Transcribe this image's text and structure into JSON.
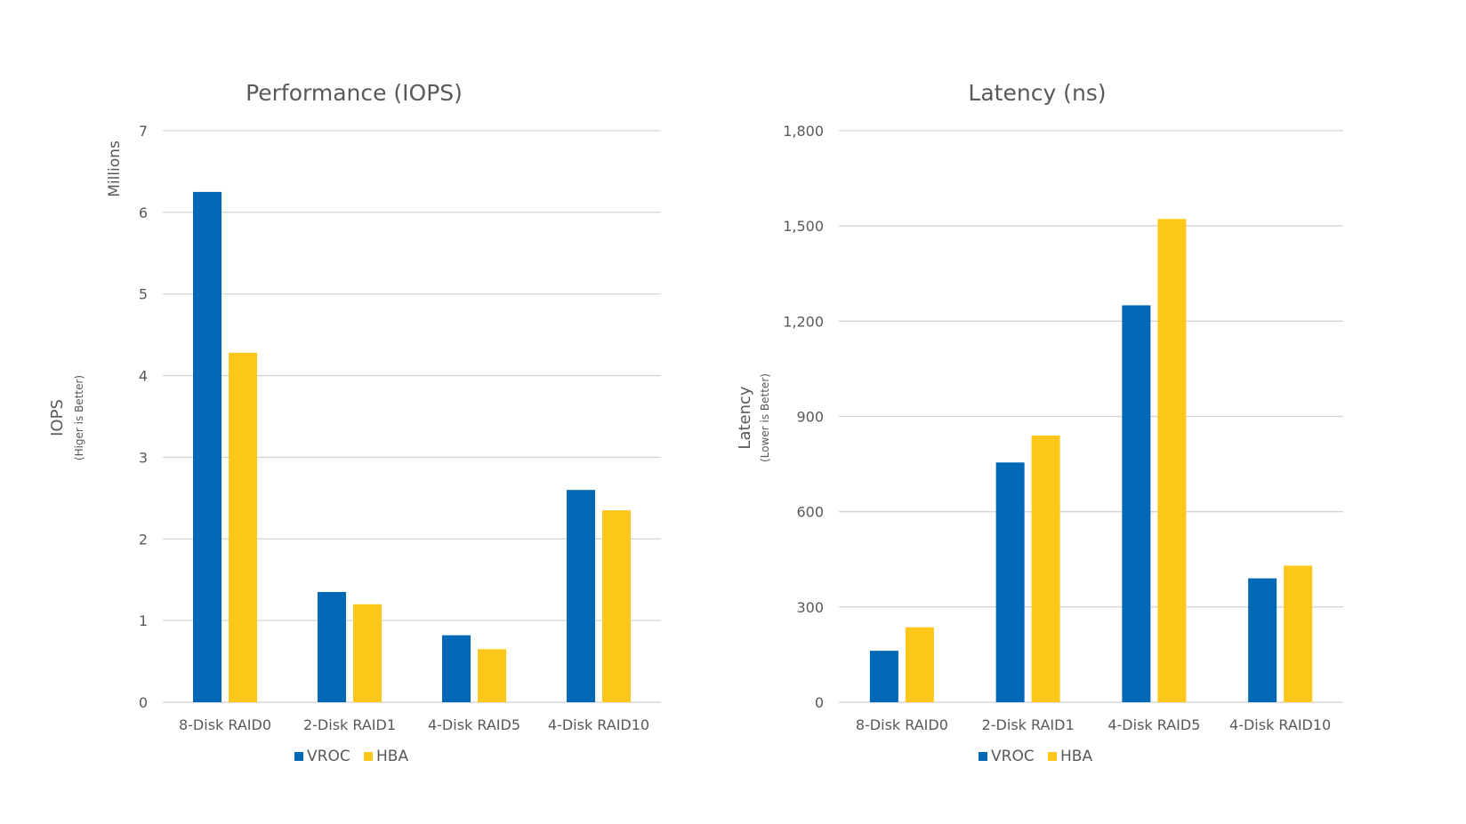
{
  "chart_data": [
    {
      "type": "bar",
      "title": "Performance (IOPS)",
      "ylabel": "IOPS",
      "ylabel_sub": "(Higer is Better)",
      "unit_label": "Millions",
      "categories": [
        "8-Disk RAID0",
        "2-Disk RAID1",
        "4-Disk RAID5",
        "4-Disk RAID10"
      ],
      "yticks": [
        "0",
        "1",
        "2",
        "3",
        "4",
        "5",
        "6",
        "7"
      ],
      "ylim": [
        0,
        7
      ],
      "grid": true,
      "legend_position": "bottom",
      "series": [
        {
          "name": "VROC",
          "color": "#0068b5",
          "values": [
            6.25,
            1.35,
            0.82,
            2.6
          ]
        },
        {
          "name": "HBA",
          "color": "#fcc718",
          "values": [
            4.28,
            1.2,
            0.65,
            2.35
          ]
        }
      ]
    },
    {
      "type": "bar",
      "title": "Latency (ns)",
      "ylabel": "Latency",
      "ylabel_sub": "(Lower is Better)",
      "categories": [
        "8-Disk RAID0",
        "2-Disk RAID1",
        "4-Disk RAID5",
        "4-Disk RAID10"
      ],
      "yticks": [
        "0",
        "300",
        "600",
        "900",
        "1,200",
        "1,500",
        "1,800"
      ],
      "ylim": [
        0,
        1800
      ],
      "grid": true,
      "legend_position": "bottom",
      "series": [
        {
          "name": "VROC",
          "color": "#0068b5",
          "values": [
            162,
            755,
            1250,
            390
          ]
        },
        {
          "name": "HBA",
          "color": "#fcc718",
          "values": [
            236,
            840,
            1522,
            430
          ]
        }
      ]
    }
  ]
}
